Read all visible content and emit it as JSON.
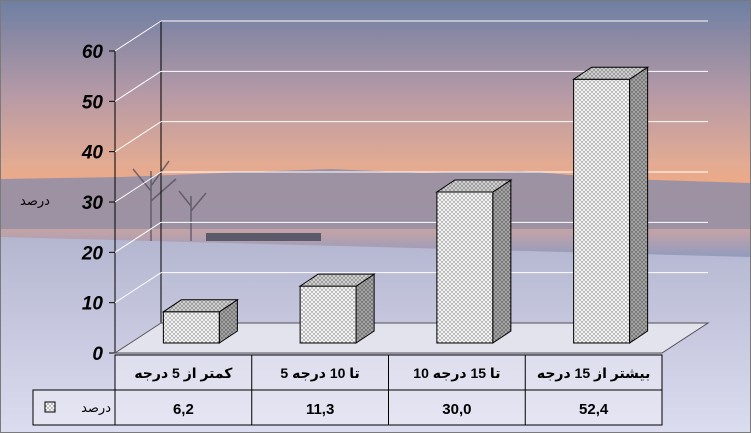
{
  "chart_data": {
    "type": "bar",
    "style": "3d-cylinder-free column",
    "categories": [
      "کمتر از 5 درجه",
      "تا 10 درجه 5",
      "تا 15 درجه 10",
      "بیشتر از 15 درجه"
    ],
    "series": [
      {
        "name": "درصد",
        "values": [
          6.2,
          11.3,
          30.0,
          52.4
        ]
      }
    ],
    "value_labels": [
      "6,2",
      "11,3",
      "30,0",
      "52,4"
    ],
    "ylabel": "درصد",
    "ylim": [
      0,
      60
    ],
    "yticks": [
      0,
      10,
      20,
      30,
      40,
      50,
      60
    ],
    "grid": true,
    "data_table": true,
    "background": "photo of a snowy lakeshore at sunset",
    "colors": {
      "sky_top": "#6e7fa3",
      "sky_mid": "#d7a9a0",
      "sky_glow": "#f5a77d",
      "water": "#8d9bc0",
      "snow": "#d9d9ee",
      "bar_front": "#f0f0f0",
      "bar_side": "#a9a9a9",
      "bar_top": "#c8c8c8"
    }
  }
}
